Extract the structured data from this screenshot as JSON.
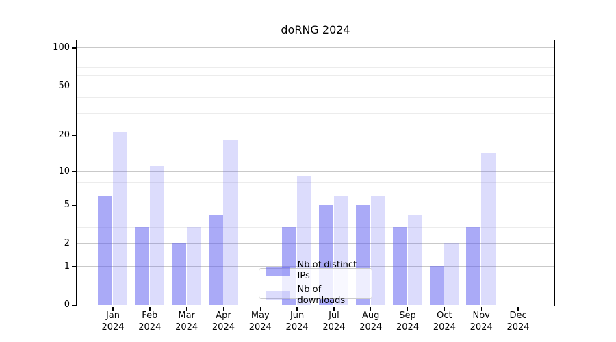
{
  "title": "doRNG 2024",
  "chart_data": {
    "type": "bar",
    "title": "doRNG 2024",
    "categories": [
      "Jan 2024",
      "Feb 2024",
      "Mar 2024",
      "Apr 2024",
      "May 2024",
      "Jun 2024",
      "Jul 2024",
      "Aug 2024",
      "Sep 2024",
      "Oct 2024",
      "Nov 2024",
      "Dec 2024"
    ],
    "series": [
      {
        "name": "Nb of distinct IPs",
        "color": "rgba(92,92,240,0.52)",
        "values": [
          6,
          3,
          2,
          4,
          0,
          3,
          5,
          5,
          3,
          1,
          3,
          0
        ]
      },
      {
        "name": "Nb of downloads",
        "color": "rgba(92,92,240,0.21)",
        "values": [
          21,
          11,
          3,
          18,
          0,
          9,
          6,
          6,
          4,
          2,
          14,
          0
        ]
      }
    ],
    "xlabel": "",
    "ylabel": "",
    "y_scale": "log1p",
    "y_ticks": [
      0,
      1,
      2,
      5,
      10,
      20,
      50,
      100
    ],
    "y_minor_gridlines": [
      3,
      4,
      6,
      7,
      8,
      9,
      30,
      40,
      60,
      70,
      80,
      90
    ],
    "ylim": [
      0,
      114
    ],
    "grid": "horizontal",
    "legend_position": "lower-center-inside"
  },
  "colors": {
    "bar_strong": "rgba(92,92,240,0.52)",
    "bar_light": "rgba(92,92,240,0.21)",
    "major_grid": "#c9c9c9",
    "minor_grid": "#ececec",
    "spine": "#000000",
    "legend_border": "#cccccc",
    "background": "#ffffff"
  }
}
